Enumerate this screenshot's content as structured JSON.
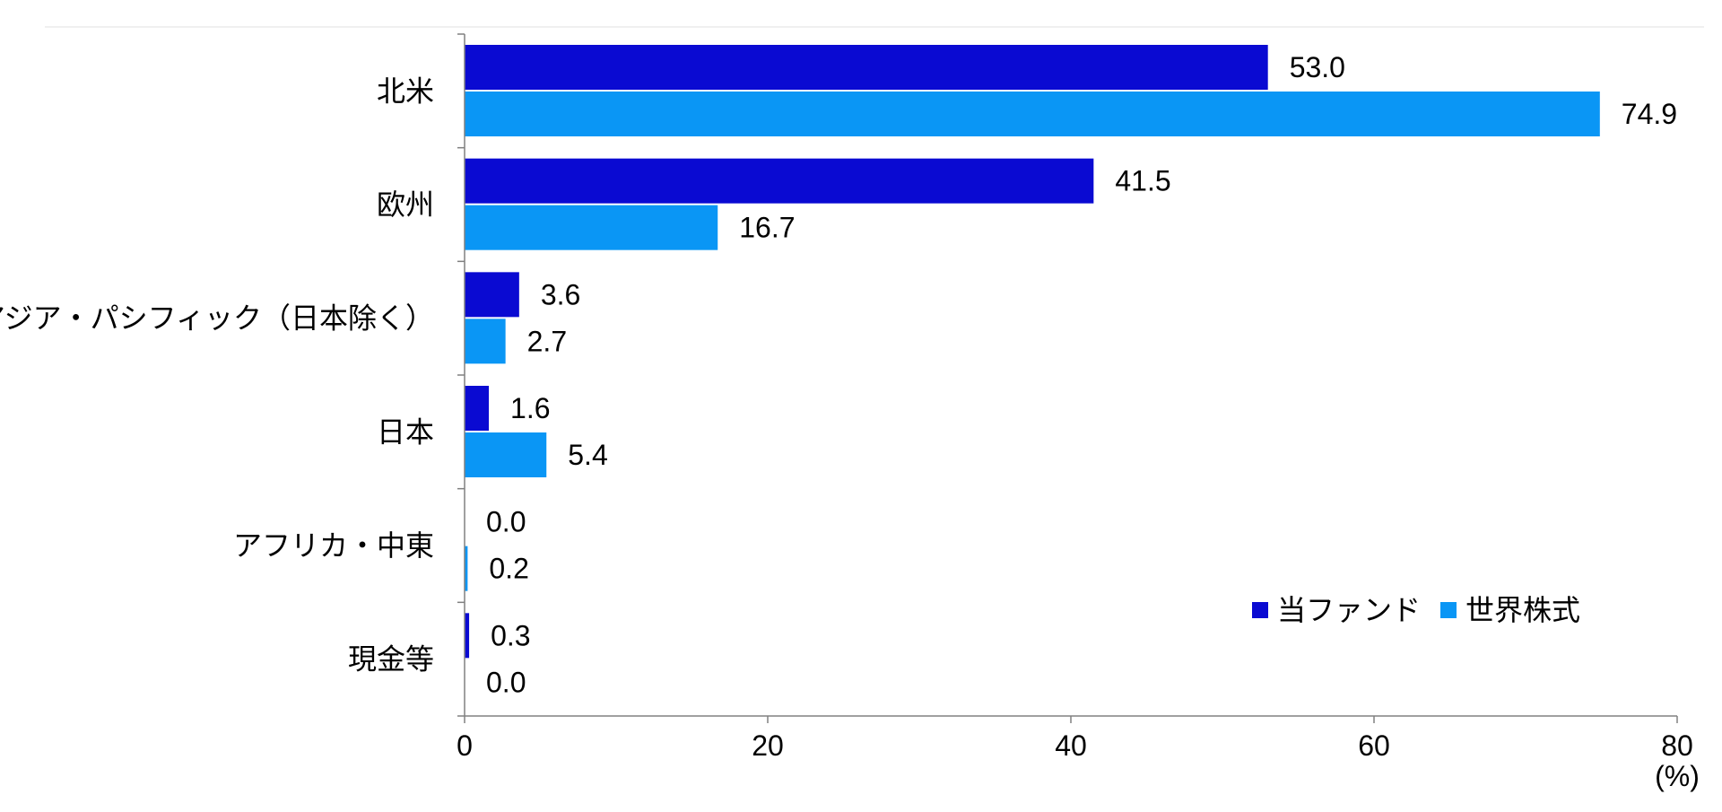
{
  "chart_data": {
    "type": "bar",
    "orientation": "horizontal",
    "categories": [
      "北米",
      "欧州",
      "アジア・パシフィック（日本除く）",
      "日本",
      "アフリカ・中東",
      "現金等"
    ],
    "series": [
      {
        "name": "当ファンド",
        "color": "#0a0ad2",
        "values": [
          53.0,
          41.5,
          3.6,
          1.6,
          0.0,
          0.3
        ],
        "labels": [
          "53.0",
          "41.5",
          "3.6",
          "1.6",
          "0.0",
          "0.3"
        ]
      },
      {
        "name": "世界株式",
        "color": "#0a96f5",
        "values": [
          74.9,
          16.7,
          2.7,
          5.4,
          0.2,
          0.0
        ],
        "labels": [
          "74.9",
          "16.7",
          "2.7",
          "5.4",
          "0.2",
          "0.0"
        ]
      }
    ],
    "xlim": [
      0,
      80
    ],
    "xticks": [
      0,
      20,
      40,
      60,
      80
    ],
    "xtick_labels": [
      "0",
      "20",
      "40",
      "60",
      "80"
    ],
    "unit": "(%)",
    "legend_position": "bottom-right",
    "grid": false
  }
}
